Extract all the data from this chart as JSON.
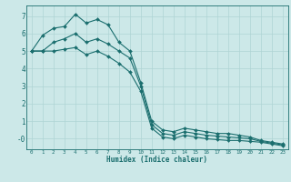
{
  "xlabel": "Humidex (Indice chaleur)",
  "background_color": "#cce8e8",
  "grid_color": "#afd4d4",
  "line_color": "#1a6e6e",
  "x_values": [
    0,
    1,
    2,
    3,
    4,
    5,
    6,
    7,
    8,
    9,
    10,
    11,
    12,
    13,
    14,
    15,
    16,
    17,
    18,
    19,
    20,
    21,
    22,
    23
  ],
  "line1": [
    5.0,
    5.9,
    6.3,
    6.4,
    7.1,
    6.6,
    6.8,
    6.5,
    5.5,
    5.0,
    3.2,
    1.0,
    0.5,
    0.4,
    0.6,
    0.5,
    0.4,
    0.3,
    0.3,
    0.2,
    0.1,
    -0.1,
    -0.2,
    -0.3
  ],
  "line2": [
    5.0,
    5.0,
    5.5,
    5.7,
    6.0,
    5.5,
    5.7,
    5.4,
    5.0,
    4.6,
    3.0,
    0.8,
    0.3,
    0.2,
    0.4,
    0.3,
    0.2,
    0.15,
    0.1,
    0.05,
    0.0,
    -0.15,
    -0.25,
    -0.35
  ],
  "line3": [
    5.0,
    5.0,
    5.0,
    5.1,
    5.2,
    4.8,
    5.0,
    4.7,
    4.3,
    3.8,
    2.7,
    0.6,
    0.1,
    0.0,
    0.2,
    0.1,
    0.0,
    -0.05,
    -0.1,
    -0.1,
    -0.15,
    -0.2,
    -0.3,
    -0.4
  ],
  "ylim": [
    -0.6,
    7.6
  ],
  "xlim": [
    -0.5,
    23.5
  ],
  "yticks": [
    0,
    1,
    2,
    3,
    4,
    5,
    6,
    7
  ],
  "ytick_labels": [
    "-0",
    "1",
    "2",
    "3",
    "4",
    "5",
    "6",
    "7"
  ],
  "xticks": [
    0,
    1,
    2,
    3,
    4,
    5,
    6,
    7,
    8,
    9,
    10,
    11,
    12,
    13,
    14,
    15,
    16,
    17,
    18,
    19,
    20,
    21,
    22,
    23
  ],
  "marker_size": 2.0,
  "line_width": 0.8
}
